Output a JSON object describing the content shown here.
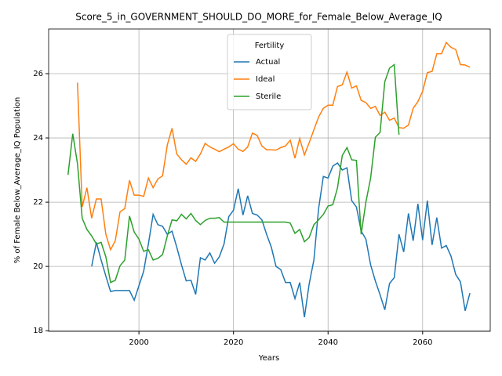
{
  "chart_data": {
    "type": "line",
    "title": "Score_5_in_GOVERNMENT_SHOULD_DO_MORE_for_Female_Below_Average_IQ",
    "xlabel": "Years",
    "ylabel": "% of Female Below_Average_IQ Population",
    "x": [
      1985,
      1986,
      1987,
      1988,
      1989,
      1990,
      1991,
      1992,
      1993,
      1994,
      1995,
      1996,
      1997,
      1998,
      1999,
      2000,
      2001,
      2002,
      2003,
      2004,
      2005,
      2006,
      2007,
      2008,
      2009,
      2010,
      2011,
      2012,
      2013,
      2014,
      2015,
      2016,
      2017,
      2018,
      2019,
      2020,
      2021,
      2022,
      2023,
      2024,
      2025,
      2026,
      2027,
      2028,
      2029,
      2030,
      2031,
      2032,
      2033,
      2034,
      2035,
      2036,
      2037,
      2038,
      2039,
      2040,
      2041,
      2042,
      2043,
      2044,
      2045,
      2046,
      2047,
      2048,
      2049,
      2050,
      2051,
      2052,
      2053,
      2054,
      2055,
      2056,
      2057,
      2058,
      2059,
      2060,
      2061,
      2062,
      2063,
      2064,
      2065,
      2066,
      2067,
      2068,
      2069,
      2070
    ],
    "series": [
      {
        "name": "Actual",
        "color": "#1f77b4",
        "values": [
          null,
          null,
          null,
          null,
          null,
          20.0,
          20.75,
          20.2,
          19.7,
          19.22,
          19.25,
          19.25,
          19.25,
          19.25,
          18.95,
          19.4,
          19.85,
          20.7,
          21.62,
          21.3,
          21.25,
          21.0,
          21.1,
          20.6,
          20.05,
          19.55,
          19.57,
          19.13,
          20.27,
          20.2,
          20.42,
          20.1,
          20.3,
          20.7,
          21.55,
          21.75,
          22.42,
          21.6,
          22.2,
          21.65,
          21.6,
          21.45,
          21.0,
          20.6,
          20.0,
          19.9,
          19.5,
          19.5,
          19.0,
          19.5,
          18.42,
          19.45,
          20.2,
          21.8,
          22.8,
          22.75,
          23.12,
          23.22,
          23.0,
          23.07,
          22.05,
          21.85,
          21.1,
          20.85,
          20.05,
          19.55,
          19.12,
          18.65,
          19.47,
          19.65,
          21.0,
          20.45,
          21.65,
          20.8,
          21.95,
          20.82,
          22.05,
          20.67,
          21.52,
          20.57,
          20.65,
          20.32,
          19.75,
          19.52,
          18.62,
          19.17
        ]
      },
      {
        "name": "Ideal",
        "color": "#ff7f0e",
        "values": [
          null,
          null,
          25.72,
          21.85,
          22.45,
          21.5,
          22.1,
          22.1,
          21.0,
          20.52,
          20.8,
          21.7,
          21.8,
          22.68,
          22.22,
          22.22,
          22.18,
          22.75,
          22.45,
          22.72,
          22.82,
          23.78,
          24.3,
          23.5,
          23.32,
          23.18,
          23.38,
          23.27,
          23.5,
          23.83,
          23.72,
          23.65,
          23.57,
          23.65,
          23.72,
          23.82,
          23.65,
          23.58,
          23.72,
          24.15,
          24.08,
          23.75,
          23.63,
          23.63,
          23.62,
          23.7,
          23.75,
          23.93,
          23.37,
          23.98,
          23.47,
          23.85,
          24.25,
          24.65,
          24.92,
          25.02,
          25.02,
          25.6,
          25.65,
          26.05,
          25.55,
          25.62,
          25.17,
          25.1,
          24.92,
          24.98,
          24.7,
          24.8,
          24.55,
          24.62,
          24.32,
          24.3,
          24.4,
          24.92,
          25.13,
          25.45,
          26.03,
          26.07,
          26.62,
          26.62,
          26.97,
          26.82,
          26.75,
          26.28,
          26.27,
          26.2
        ]
      },
      {
        "name": "Sterile",
        "color": "#2ca02c",
        "values": [
          22.85,
          24.13,
          23.2,
          21.5,
          21.15,
          20.95,
          20.7,
          20.75,
          20.3,
          19.5,
          19.57,
          20.02,
          20.2,
          21.57,
          21.07,
          20.85,
          20.47,
          20.52,
          20.2,
          20.25,
          20.37,
          20.95,
          21.45,
          21.42,
          21.62,
          21.48,
          21.65,
          21.43,
          21.3,
          21.43,
          21.5,
          21.5,
          21.52,
          21.38,
          21.38,
          21.38,
          21.38,
          21.38,
          21.38,
          21.38,
          21.38,
          21.38,
          21.38,
          21.38,
          21.38,
          21.38,
          21.38,
          21.35,
          21.03,
          21.15,
          20.77,
          20.9,
          21.3,
          21.45,
          21.62,
          21.88,
          21.92,
          22.45,
          23.45,
          23.7,
          23.32,
          23.3,
          21.0,
          22.0,
          22.75,
          24.02,
          24.17,
          25.75,
          26.17,
          26.28,
          24.1,
          null,
          null,
          null,
          null,
          null,
          null,
          null,
          null,
          null,
          null,
          null,
          null,
          null,
          null,
          null
        ]
      }
    ],
    "xlim": [
      1980.9,
      2074.3
    ],
    "xticks": [
      2000,
      2020,
      2040,
      2060
    ],
    "ylim": [
      17.98,
      27.39
    ],
    "yticks": [
      18,
      20,
      22,
      24,
      26
    ],
    "grid": true,
    "legend_title": "Fertility",
    "legend_loc": "upper center"
  }
}
